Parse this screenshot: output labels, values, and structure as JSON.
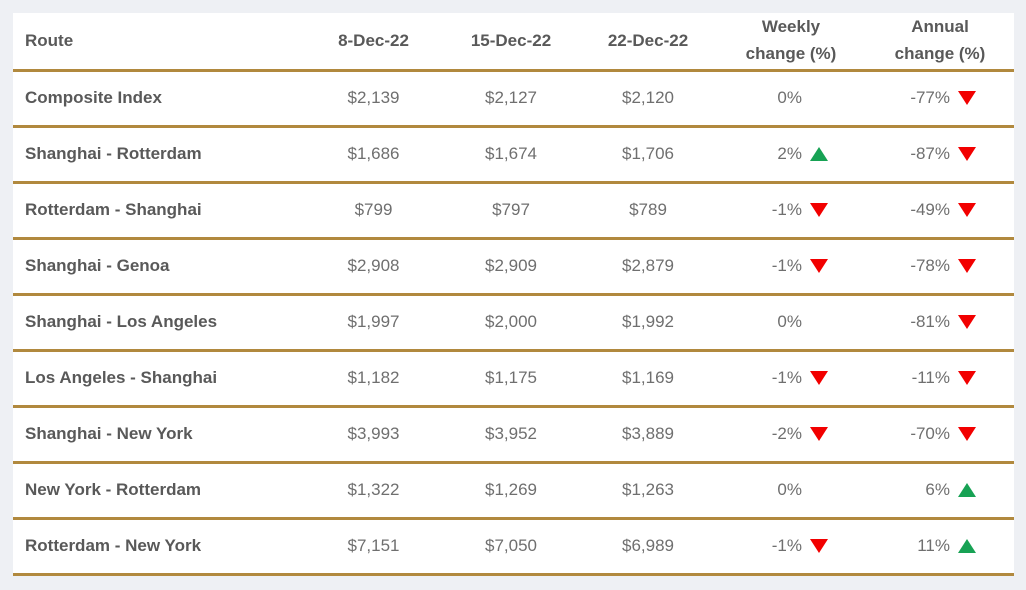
{
  "colors": {
    "accent_gold_border": "#b1893e",
    "up_arrow_green": "#17a254",
    "down_arrow_red": "#f20000",
    "page_background": "#eef0f4",
    "table_background": "#ffffff",
    "heading_text": "#595959",
    "value_text": "#6f6f6f"
  },
  "table": {
    "columns": {
      "route": "Route",
      "d1": "8-Dec-22",
      "d2": "15-Dec-22",
      "d3": "22-Dec-22",
      "weekly": "Weekly change (%)",
      "annual": "Annual change (%)"
    },
    "rows": [
      {
        "route": "Composite Index",
        "values": [
          "$2,139",
          "$2,127",
          "$2,120"
        ],
        "weekly": "0%",
        "weekly_dir": "none",
        "annual": "-77%",
        "annual_dir": "down"
      },
      {
        "route": "Shanghai - Rotterdam",
        "values": [
          "$1,686",
          "$1,674",
          "$1,706"
        ],
        "weekly": "2%",
        "weekly_dir": "up",
        "annual": "-87%",
        "annual_dir": "down"
      },
      {
        "route": "Rotterdam - Shanghai",
        "values": [
          "$799",
          "$797",
          "$789"
        ],
        "weekly": "-1%",
        "weekly_dir": "down",
        "annual": "-49%",
        "annual_dir": "down"
      },
      {
        "route": "Shanghai - Genoa",
        "values": [
          "$2,908",
          "$2,909",
          "$2,879"
        ],
        "weekly": "-1%",
        "weekly_dir": "down",
        "annual": "-78%",
        "annual_dir": "down"
      },
      {
        "route": "Shanghai - Los Angeles",
        "values": [
          "$1,997",
          "$2,000",
          "$1,992"
        ],
        "weekly": "0%",
        "weekly_dir": "none",
        "annual": "-81%",
        "annual_dir": "down"
      },
      {
        "route": "Los Angeles - Shanghai",
        "values": [
          "$1,182",
          "$1,175",
          "$1,169"
        ],
        "weekly": "-1%",
        "weekly_dir": "down",
        "annual": "-11%",
        "annual_dir": "down"
      },
      {
        "route": "Shanghai - New York",
        "values": [
          "$3,993",
          "$3,952",
          "$3,889"
        ],
        "weekly": "-2%",
        "weekly_dir": "down",
        "annual": "-70%",
        "annual_dir": "down"
      },
      {
        "route": "New York - Rotterdam",
        "values": [
          "$1,322",
          "$1,269",
          "$1,263"
        ],
        "weekly": "0%",
        "weekly_dir": "none",
        "annual": "6%",
        "annual_dir": "up"
      },
      {
        "route": "Rotterdam - New York",
        "values": [
          "$7,151",
          "$7,050",
          "$6,989"
        ],
        "weekly": "-1%",
        "weekly_dir": "down",
        "annual": "11%",
        "annual_dir": "up"
      }
    ]
  },
  "chart_data": {
    "type": "table",
    "title": "",
    "columns": [
      "Route",
      "8-Dec-22",
      "15-Dec-22",
      "22-Dec-22",
      "Weekly change (%)",
      "Annual change (%)"
    ],
    "rows": [
      [
        "Composite Index",
        2139,
        2127,
        2120,
        "0%",
        "-77%"
      ],
      [
        "Shanghai - Rotterdam",
        1686,
        1674,
        1706,
        "2%",
        "-87%"
      ],
      [
        "Rotterdam - Shanghai",
        799,
        797,
        789,
        "-1%",
        "-49%"
      ],
      [
        "Shanghai - Genoa",
        2908,
        2909,
        2879,
        "-1%",
        "-78%"
      ],
      [
        "Shanghai - Los Angeles",
        1997,
        2000,
        1992,
        "0%",
        "-81%"
      ],
      [
        "Los Angeles - Shanghai",
        1182,
        1175,
        1169,
        "-1%",
        "-11%"
      ],
      [
        "Shanghai - New York",
        3993,
        3952,
        3889,
        "-2%",
        "-70%"
      ],
      [
        "New York - Rotterdam",
        1322,
        1269,
        1263,
        "0%",
        "6%"
      ],
      [
        "Rotterdam - New York",
        7151,
        7050,
        6989,
        "-1%",
        "11%"
      ]
    ],
    "notes": "Currency values in USD; weekly change arrows: up=green triangle, down=red triangle, flat=no arrow. Annual change arrows likewise.",
    "units": "USD per container (prices), percent (changes)"
  }
}
